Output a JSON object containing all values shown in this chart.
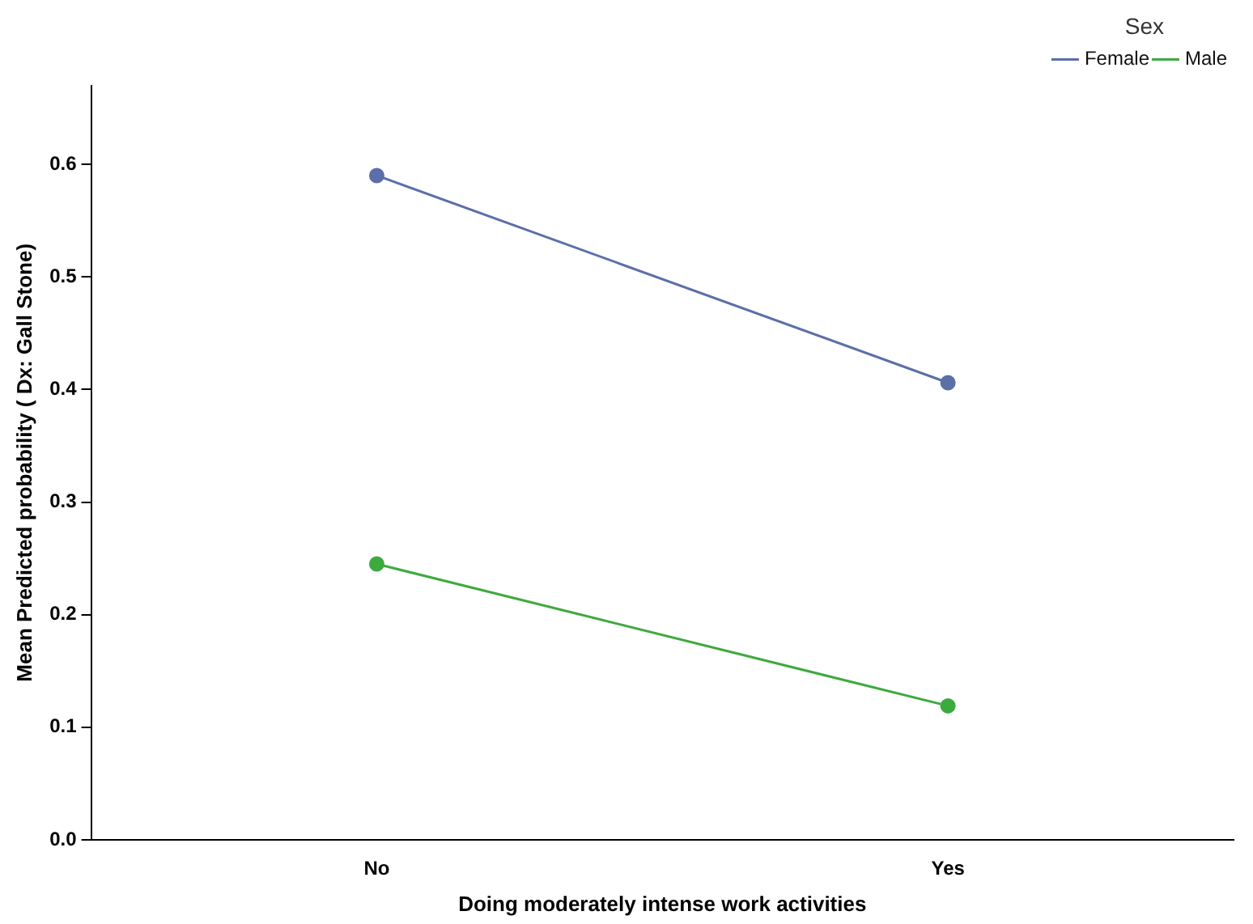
{
  "chart_data": {
    "type": "line",
    "xlabel": "Doing moderately intense work activities",
    "ylabel": "Mean Predicted probability ( Dx: Gall Stone)",
    "legend_title": "Sex",
    "categories": [
      "No",
      "Yes"
    ],
    "series": [
      {
        "name": "Female",
        "color": "#5b6fa8",
        "values": [
          0.59,
          0.406
        ]
      },
      {
        "name": "Male",
        "color": "#3daa3d",
        "values": [
          0.245,
          0.119
        ]
      }
    ],
    "ylim": [
      0,
      0.67
    ],
    "yticks": [
      {
        "value": 0,
        "label": "0.0"
      },
      {
        "value": 0.1,
        "label": "0.1"
      },
      {
        "value": 0.2,
        "label": "0.2"
      },
      {
        "value": 0.3,
        "label": "0.3"
      },
      {
        "value": 0.4,
        "label": "0.4"
      },
      {
        "value": 0.5,
        "label": "0.5"
      },
      {
        "value": 0.6,
        "label": "0.6"
      }
    ],
    "grid": false,
    "legend": "top right",
    "marker": "circle",
    "line_style": "solid"
  }
}
